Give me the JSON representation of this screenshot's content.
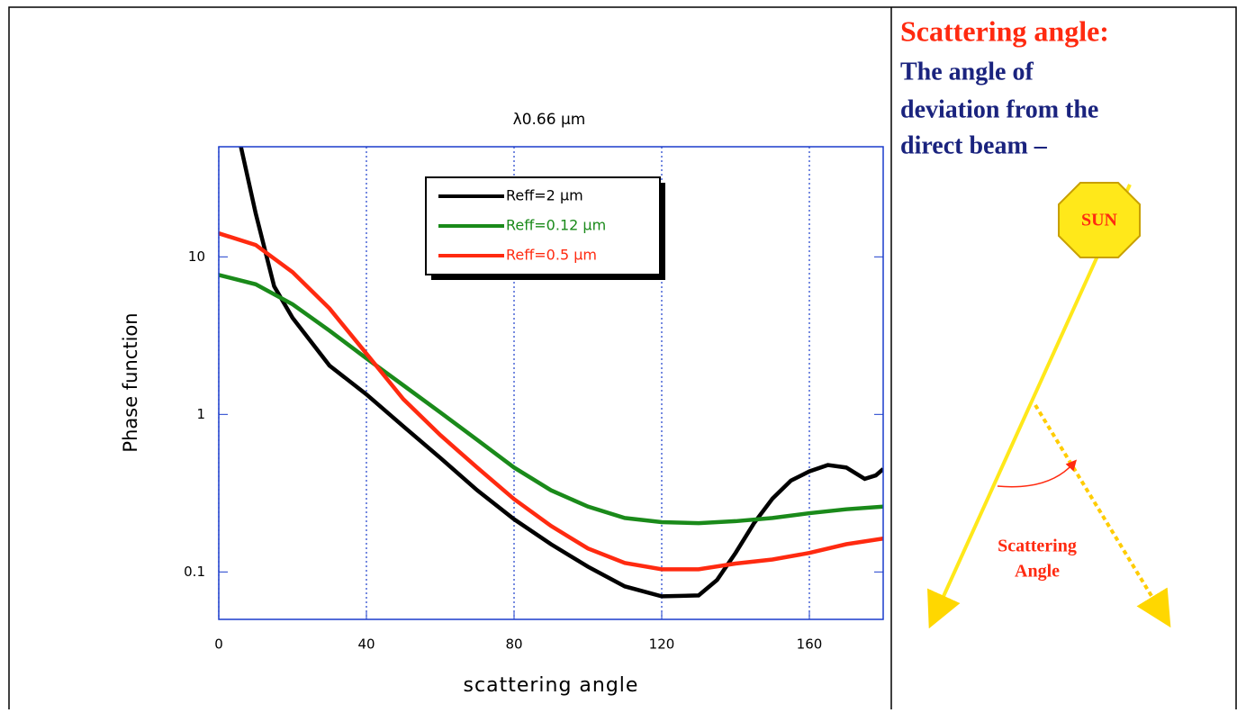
{
  "chart_data": {
    "type": "line",
    "title": "λ0.66 μm",
    "x_label": "scattering angle",
    "y_label": "Phase function",
    "xlim": [
      0,
      180
    ],
    "xticks": [
      0,
      40,
      80,
      120,
      160
    ],
    "ylim": [
      0.05,
      50
    ],
    "yticks": [
      0.1,
      1,
      10
    ],
    "log_y": true,
    "grid": true,
    "series": [
      {
        "name": "Reff=2 μm",
        "color": "#000000",
        "x": [
          6,
          10,
          15,
          20,
          30,
          40,
          50,
          60,
          70,
          80,
          90,
          100,
          110,
          120,
          130,
          135,
          140,
          145,
          150,
          155,
          160,
          165,
          170,
          175,
          178,
          180
        ],
        "values": [
          50,
          18.9,
          6.5,
          4.1,
          2.04,
          1.34,
          0.84,
          0.53,
          0.33,
          0.216,
          0.15,
          0.108,
          0.081,
          0.07,
          0.071,
          0.089,
          0.132,
          0.204,
          0.292,
          0.38,
          0.435,
          0.477,
          0.46,
          0.39,
          0.41,
          0.45
        ]
      },
      {
        "name": "Reff=0.12 μm",
        "color": "#1a8a1a",
        "x": [
          0,
          10,
          20,
          30,
          40,
          50,
          60,
          70,
          80,
          90,
          100,
          110,
          120,
          130,
          140,
          150,
          160,
          170,
          180
        ],
        "values": [
          7.67,
          6.7,
          5.0,
          3.4,
          2.27,
          1.53,
          1.03,
          0.69,
          0.46,
          0.33,
          0.26,
          0.22,
          0.207,
          0.204,
          0.21,
          0.22,
          0.236,
          0.25,
          0.26
        ]
      },
      {
        "name": "Reff=0.5 μm",
        "color": "#ff2a10",
        "x": [
          0,
          10,
          20,
          30,
          40,
          50,
          60,
          70,
          80,
          90,
          100,
          110,
          120,
          130,
          140,
          150,
          160,
          170,
          180
        ],
        "values": [
          14.1,
          11.9,
          8.0,
          4.7,
          2.43,
          1.25,
          0.74,
          0.46,
          0.29,
          0.196,
          0.141,
          0.114,
          0.104,
          0.104,
          0.113,
          0.12,
          0.132,
          0.15,
          0.163
        ]
      }
    ]
  },
  "side_panel": {
    "heading": "Scattering angle:",
    "description_lines": [
      "The angle of",
      "deviation from the",
      "direct beam –"
    ],
    "sun_label": "SUN",
    "angle_label_lines": [
      "Scattering",
      "Angle"
    ]
  }
}
